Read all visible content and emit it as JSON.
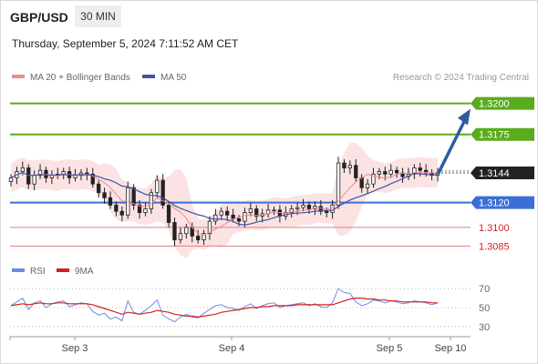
{
  "header": {
    "pair": "GBP/USD",
    "timeframe": "30 MIN",
    "datetime": "Thursday, September 5, 2024 7:11:52 AM CET"
  },
  "legend": {
    "ma20": "MA 20 + Bollinger Bands",
    "ma50": "MA 50",
    "credit": "Research © 2024 Trading Central"
  },
  "rsi_legend": {
    "rsi": "RSI",
    "ma": "9MA"
  },
  "colors": {
    "resistance": "#5bab1e",
    "support": "#3a6fd8",
    "minor": "#e08080",
    "arrow": "#2f5d9e",
    "band": "#fbe3e3",
    "ma20": "#f08a8a",
    "ma50": "#3f55a5",
    "up": "#ffffff",
    "down": "#222222",
    "rsi": "#6a8ddf",
    "rsi_ma": "#d42020"
  },
  "chart_data": [
    {
      "type": "candlestick",
      "title": "GBP/USD 30 MIN",
      "ylim": [
        1.3075,
        1.321
      ],
      "x_ticks": [
        "Sep 3",
        "Sep 4",
        "Sep 5",
        "Sep 10"
      ],
      "levels": [
        {
          "label": "1.3200",
          "value": 1.32,
          "kind": "resistance"
        },
        {
          "label": "1.3175",
          "value": 1.3175,
          "kind": "resistance"
        },
        {
          "label": "1.3144",
          "value": 1.3144,
          "kind": "last"
        },
        {
          "label": "1.3120",
          "value": 1.312,
          "kind": "support"
        },
        {
          "label": "1.3100",
          "value": 1.31,
          "kind": "minor"
        },
        {
          "label": "1.3085",
          "value": 1.3085,
          "kind": "minor"
        }
      ],
      "price_path": [
        1.314,
        1.3145,
        1.3148,
        1.3135,
        1.3142,
        1.3146,
        1.314,
        1.3142,
        1.3143,
        1.3145,
        1.314,
        1.3142,
        1.3144,
        1.3143,
        1.3135,
        1.3128,
        1.3124,
        1.3118,
        1.3113,
        1.311,
        1.3132,
        1.3118,
        1.3112,
        1.3115,
        1.3128,
        1.3138,
        1.3118,
        1.3104,
        1.309,
        1.3095,
        1.31,
        1.3093,
        1.309,
        1.3095,
        1.3105,
        1.311,
        1.3113,
        1.311,
        1.3107,
        1.3105,
        1.3112,
        1.3115,
        1.3109,
        1.3111,
        1.3114,
        1.3114,
        1.3109,
        1.3112,
        1.3115,
        1.3116,
        1.3118,
        1.3115,
        1.3117,
        1.3113,
        1.3112,
        1.3118,
        1.3152,
        1.3148,
        1.315,
        1.314,
        1.3132,
        1.3135,
        1.3143,
        1.3145,
        1.3143,
        1.3146,
        1.3144,
        1.3141,
        1.3143,
        1.3148,
        1.3146,
        1.3144,
        1.3142,
        1.3144
      ],
      "forecast_arrow": {
        "from": 1.3144,
        "to": 1.32
      }
    },
    {
      "type": "line",
      "title": "RSI",
      "ylim": [
        25,
        75
      ],
      "y_ticks": [
        "70",
        "50",
        "30"
      ],
      "series": [
        {
          "name": "RSI",
          "values": [
            52,
            56,
            60,
            48,
            55,
            57,
            50,
            54,
            56,
            57,
            51,
            53,
            55,
            54,
            46,
            42,
            44,
            38,
            40,
            36,
            57,
            45,
            43,
            47,
            52,
            58,
            42,
            38,
            35,
            40,
            43,
            40,
            39,
            44,
            48,
            52,
            53,
            50,
            49,
            47,
            51,
            54,
            49,
            52,
            54,
            55,
            50,
            52,
            53,
            54,
            55,
            52,
            54,
            51,
            50,
            55,
            70,
            66,
            65,
            56,
            52,
            54,
            58,
            57,
            55,
            57,
            56,
            54,
            55,
            57,
            56,
            55,
            53,
            55
          ]
        },
        {
          "name": "9MA",
          "values": [
            52,
            53,
            54,
            53,
            54,
            55,
            54,
            54,
            55,
            55,
            54,
            54,
            54,
            54,
            53,
            51,
            49,
            47,
            45,
            43,
            45,
            44,
            43,
            44,
            45,
            47,
            46,
            45,
            43,
            42,
            41,
            41,
            40,
            41,
            42,
            43,
            45,
            46,
            47,
            48,
            49,
            50,
            50,
            51,
            51,
            52,
            52,
            52,
            52,
            53,
            53,
            53,
            53,
            53,
            53,
            53,
            55,
            57,
            59,
            60,
            60,
            59,
            59,
            58,
            58,
            57,
            57,
            56,
            56,
            56,
            56,
            56,
            55,
            55
          ]
        }
      ]
    }
  ]
}
